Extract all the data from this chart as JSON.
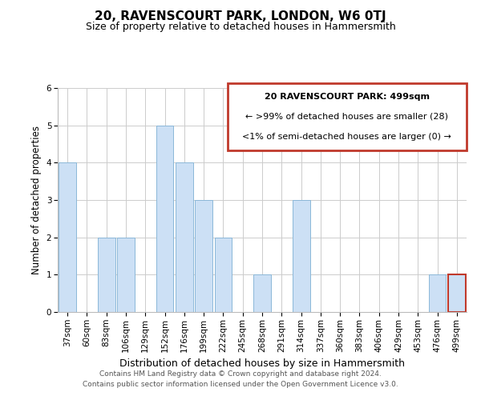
{
  "title": "20, RAVENSCOURT PARK, LONDON, W6 0TJ",
  "subtitle": "Size of property relative to detached houses in Hammersmith",
  "xlabel": "Distribution of detached houses by size in Hammersmith",
  "ylabel": "Number of detached properties",
  "bar_labels": [
    "37sqm",
    "60sqm",
    "83sqm",
    "106sqm",
    "129sqm",
    "152sqm",
    "176sqm",
    "199sqm",
    "222sqm",
    "245sqm",
    "268sqm",
    "291sqm",
    "314sqm",
    "337sqm",
    "360sqm",
    "383sqm",
    "406sqm",
    "429sqm",
    "453sqm",
    "476sqm",
    "499sqm"
  ],
  "bar_values": [
    4,
    0,
    2,
    2,
    0,
    5,
    4,
    3,
    2,
    0,
    1,
    0,
    3,
    0,
    0,
    0,
    0,
    0,
    0,
    1,
    1
  ],
  "bar_color": "#cce0f5",
  "bar_edge_color": "#8bb8d8",
  "highlight_bar_index": 20,
  "highlight_bar_edge_color": "#c0392b",
  "ylim": [
    0,
    6
  ],
  "yticks": [
    0,
    1,
    2,
    3,
    4,
    5,
    6
  ],
  "grid_color": "#cccccc",
  "background_color": "#ffffff",
  "legend_title": "20 RAVENSCOURT PARK: 499sqm",
  "legend_line1": "← >99% of detached houses are smaller (28)",
  "legend_line2": "<1% of semi-detached houses are larger (0) →",
  "legend_box_edge_color": "#c0392b",
  "footer_line1": "Contains HM Land Registry data © Crown copyright and database right 2024.",
  "footer_line2": "Contains public sector information licensed under the Open Government Licence v3.0.",
  "title_fontsize": 11,
  "subtitle_fontsize": 9,
  "xlabel_fontsize": 9,
  "ylabel_fontsize": 8.5,
  "tick_fontsize": 7.5,
  "legend_fontsize": 8,
  "footer_fontsize": 6.5
}
